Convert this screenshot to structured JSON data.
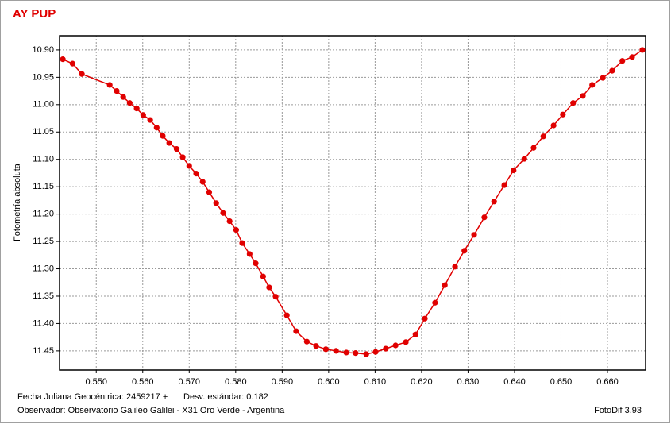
{
  "chart_data": {
    "type": "line",
    "title": "AY PUP",
    "y_label": "Fotometría absoluta",
    "footer": {
      "date": "Fecha Juliana Geocéntrica: 2459217 +",
      "std": "Desv. estándar: 0.182",
      "observer": "Observador: Observatorio Galileo Galilei - X31 Oro Verde - Argentina",
      "software": "FotoDif 3.93"
    },
    "color": "#e00000",
    "grid": true,
    "y_inverted": true,
    "xlim": [
      0.5421,
      0.6682
    ],
    "ylim": [
      10.874,
      11.485
    ],
    "xticks": [
      {
        "value": 0.55,
        "label": "0.550"
      },
      {
        "value": 0.56,
        "label": "0.560"
      },
      {
        "value": 0.57,
        "label": "0.570"
      },
      {
        "value": 0.58,
        "label": "0.580"
      },
      {
        "value": 0.59,
        "label": "0.590"
      },
      {
        "value": 0.6,
        "label": "0.600"
      },
      {
        "value": 0.61,
        "label": "0.610"
      },
      {
        "value": 0.62,
        "label": "0.620"
      },
      {
        "value": 0.63,
        "label": "0.630"
      },
      {
        "value": 0.64,
        "label": "0.640"
      },
      {
        "value": 0.65,
        "label": "0.650"
      },
      {
        "value": 0.66,
        "label": "0.660"
      }
    ],
    "yticks": [
      {
        "value": 10.9,
        "label": "10.90"
      },
      {
        "value": 10.95,
        "label": "10.95"
      },
      {
        "value": 11.0,
        "label": "11.00"
      },
      {
        "value": 11.05,
        "label": "11.05"
      },
      {
        "value": 11.1,
        "label": "11.10"
      },
      {
        "value": 11.15,
        "label": "11.15"
      },
      {
        "value": 11.2,
        "label": "11.20"
      },
      {
        "value": 11.25,
        "label": "11.25"
      },
      {
        "value": 11.3,
        "label": "11.30"
      },
      {
        "value": 11.35,
        "label": "11.35"
      },
      {
        "value": 11.4,
        "label": "11.40"
      },
      {
        "value": 11.45,
        "label": "11.45"
      }
    ],
    "x": [
      0.5428,
      0.5449,
      0.5469,
      0.5529,
      0.5544,
      0.5558,
      0.5572,
      0.5587,
      0.5601,
      0.5616,
      0.563,
      0.5643,
      0.5657,
      0.5673,
      0.5686,
      0.57,
      0.5715,
      0.5729,
      0.5743,
      0.5758,
      0.5773,
      0.5787,
      0.5801,
      0.5814,
      0.583,
      0.5843,
      0.5859,
      0.5872,
      0.5886,
      0.591,
      0.593,
      0.5953,
      0.5973,
      0.5994,
      0.6016,
      0.6038,
      0.6058,
      0.6081,
      0.6101,
      0.6123,
      0.6144,
      0.6166,
      0.6187,
      0.6207,
      0.6229,
      0.625,
      0.6272,
      0.6292,
      0.6313,
      0.6335,
      0.6356,
      0.6378,
      0.6398,
      0.6421,
      0.6441,
      0.6462,
      0.6484,
      0.6504,
      0.6526,
      0.6547,
      0.6567,
      0.659,
      0.661,
      0.6632,
      0.6653,
      0.6675
    ],
    "values": [
      10.917,
      10.925,
      10.944,
      10.964,
      10.975,
      10.986,
      10.997,
      11.007,
      11.019,
      11.028,
      11.042,
      11.057,
      11.07,
      11.081,
      11.096,
      11.112,
      11.126,
      11.141,
      11.16,
      11.18,
      11.198,
      11.213,
      11.229,
      11.253,
      11.273,
      11.29,
      11.314,
      11.334,
      11.351,
      11.385,
      11.414,
      11.433,
      11.441,
      11.447,
      11.45,
      11.453,
      11.454,
      11.456,
      11.452,
      11.446,
      11.44,
      11.434,
      11.42,
      11.391,
      11.362,
      11.33,
      11.296,
      11.267,
      11.238,
      11.206,
      11.177,
      11.147,
      11.12,
      11.099,
      11.079,
      11.058,
      11.038,
      11.018,
      10.997,
      10.984,
      10.964,
      10.951,
      10.938,
      10.92,
      10.913,
      10.9
    ]
  }
}
